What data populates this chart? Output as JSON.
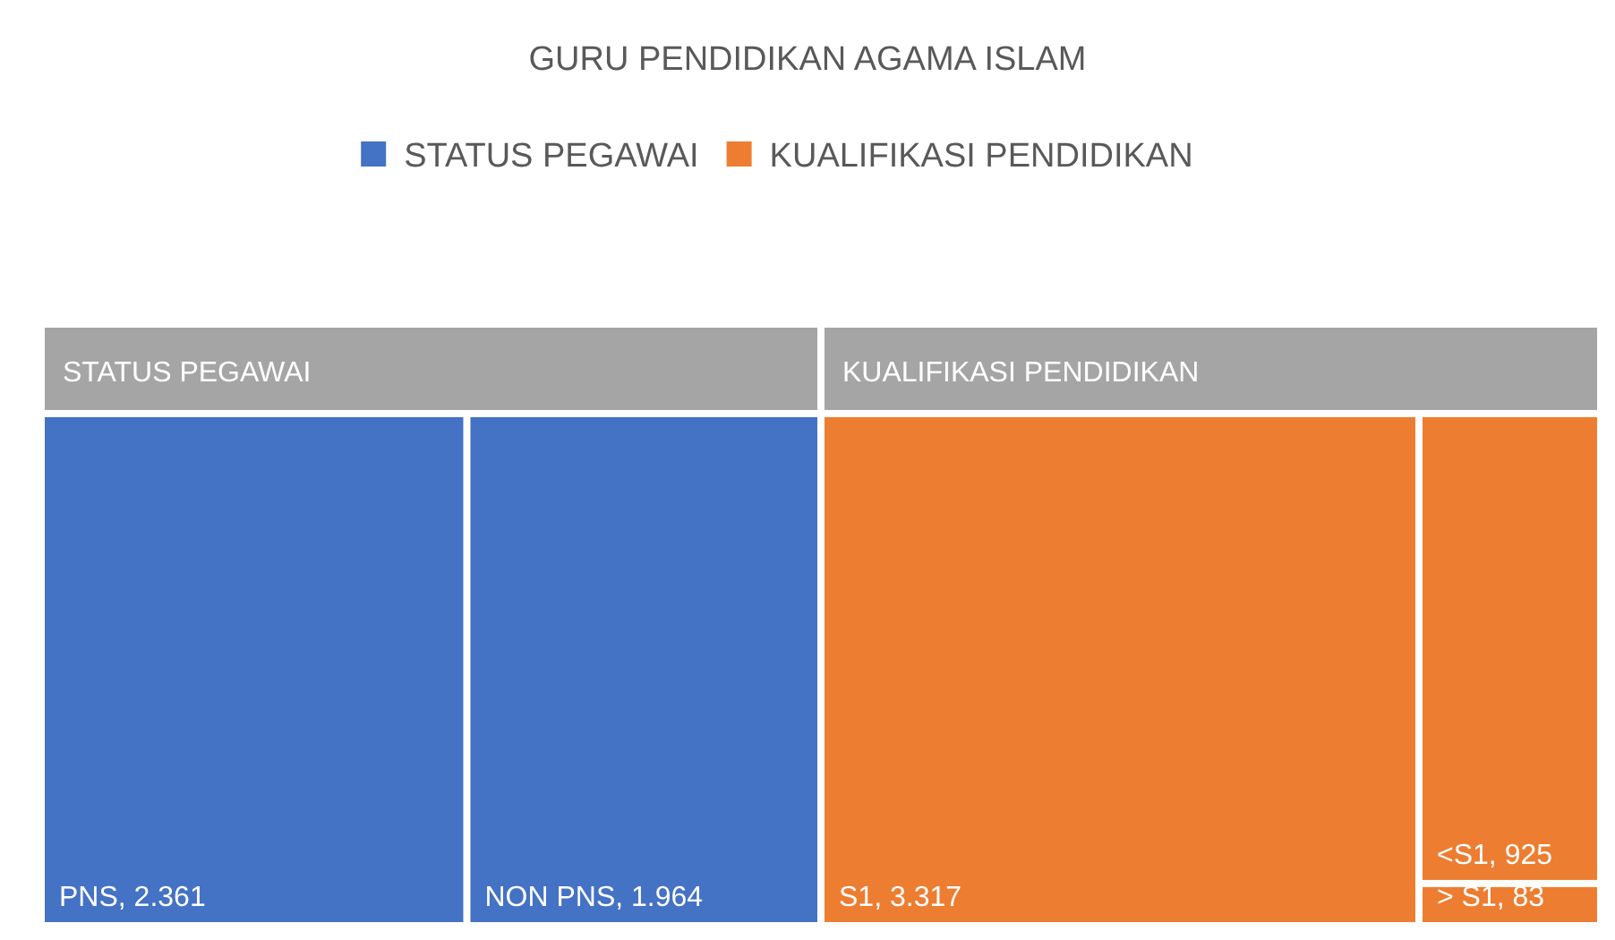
{
  "chart_data": {
    "type": "other",
    "title": "GURU PENDIDIKAN AGAMA ISLAM",
    "legend": "top",
    "categories": [
      "PNS",
      "NON PNS",
      "S1",
      "<S1",
      "> S1"
    ],
    "series": [
      {
        "name": "STATUS PEGAWAI",
        "color": "#4472c4",
        "values": [
          2361,
          1964,
          null,
          null,
          null
        ],
        "value_labels": [
          ", 2.361",
          ", 1.964",
          null,
          null,
          null
        ]
      },
      {
        "name": "KUALIFIKASI PENDIDIKAN",
        "color": "#ed7d31",
        "values": [
          null,
          null,
          3317,
          925,
          83
        ],
        "value_labels": [
          null,
          null,
          ", 3.317",
          ", 925",
          ", 83"
        ]
      }
    ]
  }
}
